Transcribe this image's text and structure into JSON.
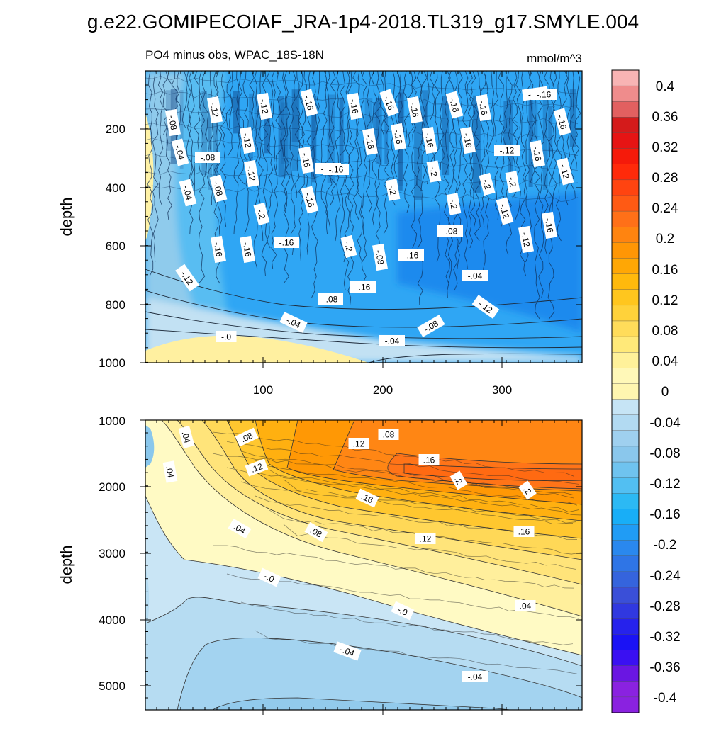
{
  "title": "g.e22.GOMIPECOIAF_JRA-1p4-2018.TL319_g17.SMYLE.004",
  "colors": {
    "neg": [
      "#c6e4f5",
      "#b2daf2",
      "#9fd0ef",
      "#8ac7ec",
      "#6fc3ef",
      "#52bff2",
      "#2cb9f4",
      "#18aef7",
      "#209cf5",
      "#2a88ee",
      "#2f75e6",
      "#3564dd",
      "#3a4fd8",
      "#3038e0",
      "#2622ec",
      "#1a12f5",
      "#3a10f2",
      "#6a16e2",
      "#8a22e0"
    ],
    "pos": [
      "#fff8b8",
      "#fff19a",
      "#ffe979",
      "#ffdc5a",
      "#ffd23a",
      "#ffc61e",
      "#ffb90c",
      "#ffa705",
      "#ff9605",
      "#ff8410",
      "#ff7018",
      "#ff5a14",
      "#ff4410",
      "#ff2a0a",
      "#f51a0a",
      "#e61414",
      "#d41b1b",
      "#e26060",
      "#ef8c8c",
      "#f8b4b4"
    ]
  },
  "chart_data": [
    {
      "type": "contour",
      "title": "PO4 minus obs, WPAC_18S-18N",
      "units": "mmol/m^3",
      "xlabel": "",
      "ylabel": "depth",
      "xlim": [
        0,
        365
      ],
      "ylim": [
        1000,
        0
      ],
      "xticks": [
        "100",
        "200",
        "300"
      ],
      "yticks": [
        "200",
        "400",
        "600",
        "800",
        "1000"
      ],
      "contour_labels": [
        "-.16",
        "-.12",
        "-.12",
        "-.16",
        "-.16",
        "-.16",
        "-.16",
        "-.16",
        "-.16",
        "-.16",
        "-.16",
        "-.08",
        "-.04",
        "-.08",
        "-.12",
        "-.16",
        "-.16",
        "-.16",
        "-.16",
        "-.16",
        "-.16",
        "-.12",
        "-.16",
        "-.04",
        "-.08",
        "-.12",
        "-.16",
        "-.16",
        "-.2",
        "-.2",
        "-.2",
        "-.2",
        "-.12",
        "-.2",
        "-.2",
        "-.12",
        "-.16",
        "-.2",
        "-.08",
        "-.08",
        "-.12",
        "-.16",
        "-.16",
        "-.16",
        "-.04",
        "-.12",
        "-.16",
        "-.08",
        "-.12",
        "-.04",
        "-.08",
        "-.0",
        "-.04",
        "-.16"
      ]
    },
    {
      "type": "contour",
      "title": "",
      "ylabel": "depth",
      "xlim": [
        0,
        365
      ],
      "ylim": [
        5350,
        1000
      ],
      "yticks": [
        "1000",
        "2000",
        "3000",
        "4000",
        "5000"
      ],
      "contour_labels": [
        ".04",
        ".08",
        ".08",
        ".12",
        ".04",
        ".12",
        ".16",
        ".2",
        ".2",
        ".16",
        ".04",
        ".08",
        ".12",
        ".16",
        "-.0",
        "-.0",
        ".04",
        "-.04",
        "-.04"
      ]
    }
  ],
  "colorbar": {
    "labels": [
      "0.4",
      "0.36",
      "0.32",
      "0.28",
      "0.24",
      "0.2",
      "0.16",
      "0.12",
      "0.08",
      "0.04",
      "0",
      "-0.04",
      "-0.08",
      "-0.12",
      "-0.16",
      "-0.2",
      "-0.24",
      "-0.28",
      "-0.32",
      "-0.36",
      "-0.4"
    ]
  }
}
